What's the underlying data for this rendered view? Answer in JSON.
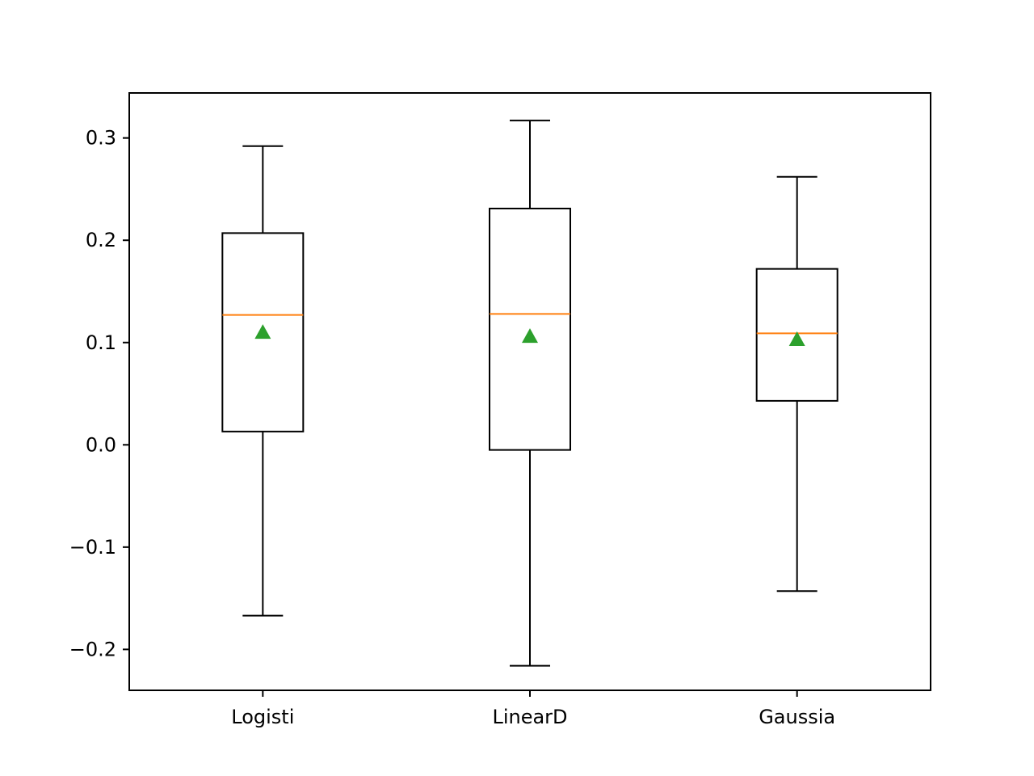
{
  "chart_data": {
    "type": "box",
    "title": "",
    "xlabel": "",
    "ylabel": "",
    "categories": [
      "Logisti",
      "LinearD",
      "Gaussia"
    ],
    "boxes": [
      {
        "category": "Logisti",
        "whisker_low": -0.167,
        "q1": 0.013,
        "median": 0.127,
        "q3": 0.207,
        "whisker_high": 0.292,
        "mean": 0.11
      },
      {
        "category": "LinearD",
        "whisker_low": -0.216,
        "q1": -0.005,
        "median": 0.128,
        "q3": 0.231,
        "whisker_high": 0.317,
        "mean": 0.106
      },
      {
        "category": "Gaussia",
        "whisker_low": -0.143,
        "q1": 0.043,
        "median": 0.109,
        "q3": 0.172,
        "whisker_high": 0.262,
        "mean": 0.103
      }
    ],
    "ylim": [
      -0.24,
      0.344
    ],
    "yticks": [
      -0.2,
      -0.1,
      0.0,
      0.1,
      0.2,
      0.3
    ],
    "ytick_labels": [
      "−0.2",
      "−0.1",
      "0.0",
      "0.1",
      "0.2",
      "0.3"
    ],
    "grid": false,
    "colors": {
      "box": "#000000",
      "median": "#ff7f0e",
      "mean_marker": "#2ca02c"
    }
  }
}
